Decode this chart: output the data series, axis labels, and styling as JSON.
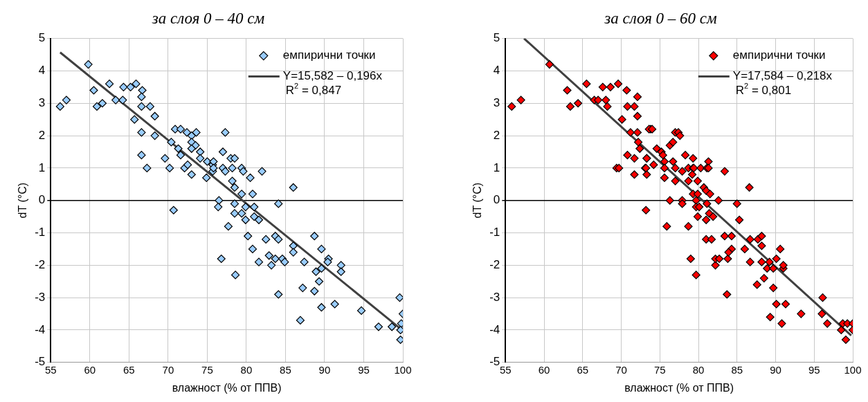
{
  "chart_data": [
    {
      "type": "scatter",
      "title": "за слоя 0 – 40 см",
      "xlabel": "влажност (% от ППВ)",
      "ylabel": "dT (°C)",
      "xlim": [
        55,
        100
      ],
      "xticks": [
        55,
        60,
        65,
        70,
        75,
        80,
        85,
        90,
        95,
        100
      ],
      "ylim": [
        -5,
        5
      ],
      "yticks": [
        -5,
        -4,
        -3,
        -2,
        -1,
        0,
        1,
        2,
        3,
        4,
        5
      ],
      "grid": true,
      "legend": "top right",
      "annotations": [
        "R$^{2}$ = 0,847"
      ],
      "series": [
        {
          "name": "емпирични точки",
          "color": "#99ccff",
          "marker": "diamond",
          "x": [
            56.2,
            57.0,
            59.8,
            60.5,
            60.9,
            61.6,
            62.5,
            63.3,
            64.2,
            64.3,
            65.2,
            65.9,
            66.7,
            66.6,
            66.6,
            67.7,
            68.3,
            65.7,
            66.6,
            66.6,
            67.3,
            68.3,
            69.6,
            70.2,
            70.4,
            71.3,
            70.9,
            71.6,
            71.6,
            72.4,
            73.0,
            73.0,
            73.5,
            73.0,
            72.1,
            72.5,
            73.0,
            73.6,
            74.1,
            74.1,
            74.9,
            75.0,
            75.7,
            75.7,
            70.7,
            77.3,
            77.0,
            75.8,
            78.0,
            78.5,
            75.8,
            77.0,
            78.2,
            79.4,
            79.6,
            80.5,
            82.0,
            77.3,
            78.2,
            78.5,
            79.4,
            80.8,
            76.5,
            76.4,
            78.5,
            79.9,
            81.0,
            84.1,
            78.5,
            79.4,
            81.0,
            81.6,
            79.9,
            86.0,
            77.7,
            76.8,
            78.6,
            80.2,
            80.8,
            81.6,
            82.5,
            83.2,
            82.9,
            83.7,
            84.1,
            83.7,
            84.6,
            84.9,
            84.1,
            86.0,
            86.0,
            87.4,
            87.2,
            86.9,
            88.7,
            89.6,
            88.9,
            89.6,
            89.3,
            88.7,
            89.6,
            90.5,
            90.4,
            91.3,
            92.1,
            92.1,
            94.7,
            96.9,
            98.6,
            99.6,
            100.0,
            99.8,
            99.7,
            99.7
          ],
          "values": [
            2.9,
            3.1,
            4.2,
            3.4,
            2.9,
            3.0,
            3.6,
            3.1,
            3.1,
            3.5,
            3.5,
            3.6,
            3.4,
            3.2,
            2.9,
            2.9,
            2.6,
            2.5,
            2.1,
            1.4,
            1.0,
            2.0,
            1.3,
            1.0,
            1.8,
            1.6,
            2.2,
            2.2,
            1.4,
            2.1,
            2.0,
            1.8,
            1.7,
            1.6,
            1.0,
            1.1,
            0.8,
            2.1,
            1.5,
            1.3,
            0.7,
            1.2,
            1.1,
            0.9,
            -0.3,
            2.1,
            1.5,
            1.2,
            1.3,
            1.3,
            1.0,
            1.0,
            1.0,
            1.0,
            0.9,
            0.7,
            0.9,
            0.9,
            0.6,
            0.4,
            0.2,
            0.2,
            0.0,
            -0.2,
            -0.1,
            -0.2,
            -0.2,
            -0.1,
            -0.4,
            -0.4,
            -0.5,
            -0.6,
            -0.6,
            0.4,
            -0.8,
            -1.8,
            -2.3,
            -1.1,
            -1.5,
            -1.9,
            -1.2,
            -2.0,
            -1.7,
            -1.1,
            -1.2,
            -1.8,
            -1.8,
            -1.9,
            -2.9,
            -1.4,
            -1.6,
            -1.9,
            -2.7,
            -3.7,
            -1.1,
            -1.5,
            -2.2,
            -2.1,
            -2.5,
            -2.8,
            -3.3,
            -1.8,
            -1.9,
            -3.2,
            -2.0,
            -2.2,
            -3.4,
            -3.9,
            -3.9,
            -3.0,
            -3.5,
            -3.8,
            -4.0,
            -4.3
          ]
        },
        {
          "name": "Y=15,582 – 0,196x",
          "type": "line",
          "color": "#404040",
          "marker": "none",
          "x": [
            56.2,
            100.0
          ],
          "values": [
            4.57,
            -4.02
          ]
        }
      ]
    },
    {
      "type": "scatter",
      "title": "за слоя 0 – 60 см",
      "xlabel": "влажност (% от ППВ)",
      "ylabel": "dT (°C)",
      "xlim": [
        55,
        100
      ],
      "xticks": [
        55,
        60,
        65,
        70,
        75,
        80,
        85,
        90,
        95,
        100
      ],
      "ylim": [
        -5,
        5
      ],
      "yticks": [
        -5,
        -4,
        -3,
        -2,
        -1,
        0,
        1,
        2,
        3,
        4,
        5
      ],
      "grid": true,
      "legend": "top right",
      "annotations": [
        "R$^{2}$ = 0,801"
      ],
      "series": [
        {
          "name": "емпирични точки",
          "color": "#ff0000",
          "marker": "diamond",
          "x": [
            55.8,
            57.0,
            60.7,
            63.0,
            63.4,
            64.4,
            65.5,
            66.5,
            67.0,
            67.6,
            68.6,
            69.6,
            70.7,
            68.0,
            68.2,
            70.8,
            71.7,
            72.1,
            72.1,
            70.1,
            71.2,
            72.1,
            72.2,
            72.4,
            70.8,
            71.7,
            73.3,
            69.4,
            69.7,
            71.7,
            73.1,
            73.3,
            73.2,
            73.8,
            73.6,
            74.0,
            74.6,
            75.2,
            75.4,
            73.3,
            73.2,
            74.2,
            75.6,
            75.6,
            75.6,
            76.3,
            76.7,
            77.0,
            77.4,
            77.6,
            76.7,
            77.0,
            77.0,
            77.9,
            78.3,
            78.7,
            78.7,
            79.3,
            79.3,
            79.4,
            79.2,
            79.9,
            80.3,
            81.1,
            81.3,
            81.3,
            83.4,
            80.7,
            81.0,
            81.5,
            79.3,
            79.9,
            82.6,
            76.3,
            77.9,
            77.9,
            79.7,
            79.7,
            80.1,
            81.1,
            85.0,
            86.6,
            79.9,
            81.4,
            81.9,
            81.0,
            85.3,
            75.9,
            78.7,
            81.0,
            81.7,
            83.4,
            84.3,
            86.7,
            87.7,
            88.2,
            88.2,
            79.0,
            79.7,
            82.2,
            82.2,
            82.7,
            83.8,
            84.3,
            83.9,
            86.0,
            86.7,
            88.2,
            89.2,
            90.1,
            90.6,
            88.9,
            89.7,
            91.0,
            91.0,
            88.5,
            87.6,
            89.7,
            83.7,
            90.1,
            91.3,
            89.3,
            90.8,
            93.3,
            96.1,
            96.0,
            96.7,
            98.7,
            99.3,
            100.0,
            98.5,
            100.0,
            99.1
          ],
          "values": [
            2.9,
            3.1,
            4.2,
            3.4,
            2.9,
            3.0,
            3.6,
            3.1,
            3.1,
            3.5,
            3.5,
            3.6,
            3.4,
            3.1,
            2.9,
            2.9,
            2.9,
            3.2,
            2.6,
            2.5,
            2.1,
            2.1,
            1.8,
            1.6,
            1.4,
            1.3,
            1.3,
            1.0,
            1.0,
            0.8,
            1.0,
            0.8,
            -0.3,
            2.2,
            2.2,
            2.2,
            1.6,
            1.5,
            1.4,
            1.3,
            1.0,
            1.1,
            1.2,
            1.0,
            0.7,
            1.7,
            1.8,
            2.1,
            2.1,
            2.0,
            1.2,
            1.0,
            0.6,
            0.9,
            1.4,
            1.0,
            0.6,
            1.3,
            1.0,
            1.0,
            0.8,
            0.6,
            1.0,
            1.0,
            1.2,
            1.0,
            0.9,
            0.4,
            0.3,
            0.2,
            0.2,
            0.2,
            0.0,
            0.0,
            0.0,
            -0.1,
            0.0,
            -0.2,
            -0.2,
            -0.1,
            -0.1,
            0.4,
            -0.5,
            -0.4,
            -0.5,
            -0.6,
            -0.6,
            -0.8,
            -0.8,
            -1.2,
            -1.2,
            -1.1,
            -1.1,
            -1.2,
            -1.2,
            -1.1,
            -1.4,
            -1.8,
            -2.3,
            -2.0,
            -1.8,
            -1.8,
            -1.8,
            -1.5,
            -1.6,
            -1.5,
            -1.9,
            -1.9,
            -1.9,
            -1.8,
            -1.5,
            -2.1,
            -2.1,
            -2.1,
            -2.0,
            -2.4,
            -2.6,
            -2.7,
            -2.9,
            -3.2,
            -3.2,
            -3.6,
            -3.8,
            -3.5,
            -3.0,
            -3.5,
            -3.8,
            -3.8,
            -3.8,
            -3.8,
            -4.0,
            -4.0,
            -4.3
          ]
        },
        {
          "name": "Y=17,584 – 0,218x",
          "type": "line",
          "color": "#404040",
          "marker": "none",
          "x": [
            57.4,
            99.8
          ],
          "values": [
            5.0,
            -4.17
          ]
        }
      ]
    }
  ]
}
